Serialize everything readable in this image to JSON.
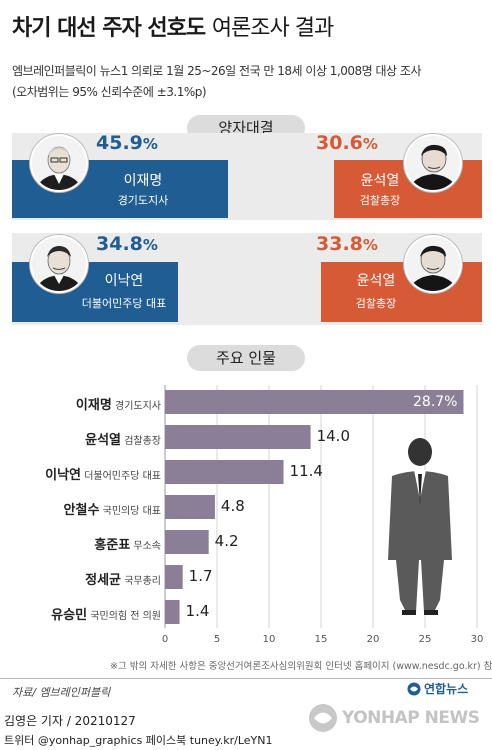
{
  "header": {
    "title_bold": "차기 대선 주자 선호도",
    "title_light": "여론조사 결과",
    "subtitle1": "엠브레인퍼블릭이 뉴스1 의뢰로 1월 25~26일 전국 만 18세 이상 1,008명 대상 조사",
    "subtitle2": "(오차범위는 95% 신뢰수준에 ±3.1%p)"
  },
  "matchups": {
    "section_label": "양자대결",
    "items": [
      {
        "left": {
          "name": "이재명",
          "title": "경기도지사",
          "pct": "45.9",
          "value": 45.9
        },
        "right": {
          "name": "윤석열",
          "title": "검찰총장",
          "pct": "30.6",
          "value": 30.6
        }
      },
      {
        "left": {
          "name": "이낙연",
          "title": "더불어민주당 대표",
          "pct": "34.8",
          "value": 34.8
        },
        "right": {
          "name": "윤석열",
          "title": "검찰총장",
          "pct": "33.8",
          "value": 33.8
        }
      }
    ],
    "percent_sign": "%"
  },
  "ranking": {
    "section_label": "주요 인물",
    "people": [
      {
        "name": "이재명",
        "title": "경기도지사",
        "value_label": "28.7%"
      },
      {
        "name": "윤석열",
        "title": "검찰총장",
        "value_label": "14.0"
      },
      {
        "name": "이낙연",
        "title": "더불어민주당 대표",
        "value_label": "11.4"
      },
      {
        "name": "안철수",
        "title": "국민의당 대표",
        "value_label": "4.8"
      },
      {
        "name": "홍준표",
        "title": "무소속",
        "value_label": "4.2"
      },
      {
        "name": "정세균",
        "title": "국무총리",
        "value_label": "1.7"
      },
      {
        "name": "유승민",
        "title": "국민의힘 전 의원",
        "value_label": "1.4"
      }
    ],
    "note": "※그 밖의 자세한 사항은 중앙선거여론조사심의위원회 인터넷 홈페이지 (www.nesdc.go.kr) 참조"
  },
  "chart_data": {
    "type": "bar",
    "orientation": "horizontal",
    "categories": [
      "이재명",
      "윤석열",
      "이낙연",
      "안철수",
      "홍준표",
      "정세균",
      "유승민"
    ],
    "values": [
      28.7,
      14.0,
      11.4,
      4.8,
      4.2,
      1.7,
      1.4
    ],
    "xlim": [
      0,
      30
    ],
    "x_ticks": [
      "0",
      "5",
      "10",
      "15",
      "20",
      "25",
      "30"
    ],
    "grid": true,
    "bar_color": "#8a7f97"
  },
  "footer": {
    "source": "자료/ 엠브레인퍼블릭",
    "agency_logo_text": "연합뉴스",
    "author": "김영은 기자 / 20210127",
    "social": "트위터 @yonhap_graphics  페이스북 tuney.kr/LeYN1",
    "watermark": "YONHAP NEWS"
  },
  "colors": {
    "blue": "#1f5d92",
    "orange": "#d65a36",
    "bar": "#8a7f97",
    "panel": "#ebebeb"
  }
}
